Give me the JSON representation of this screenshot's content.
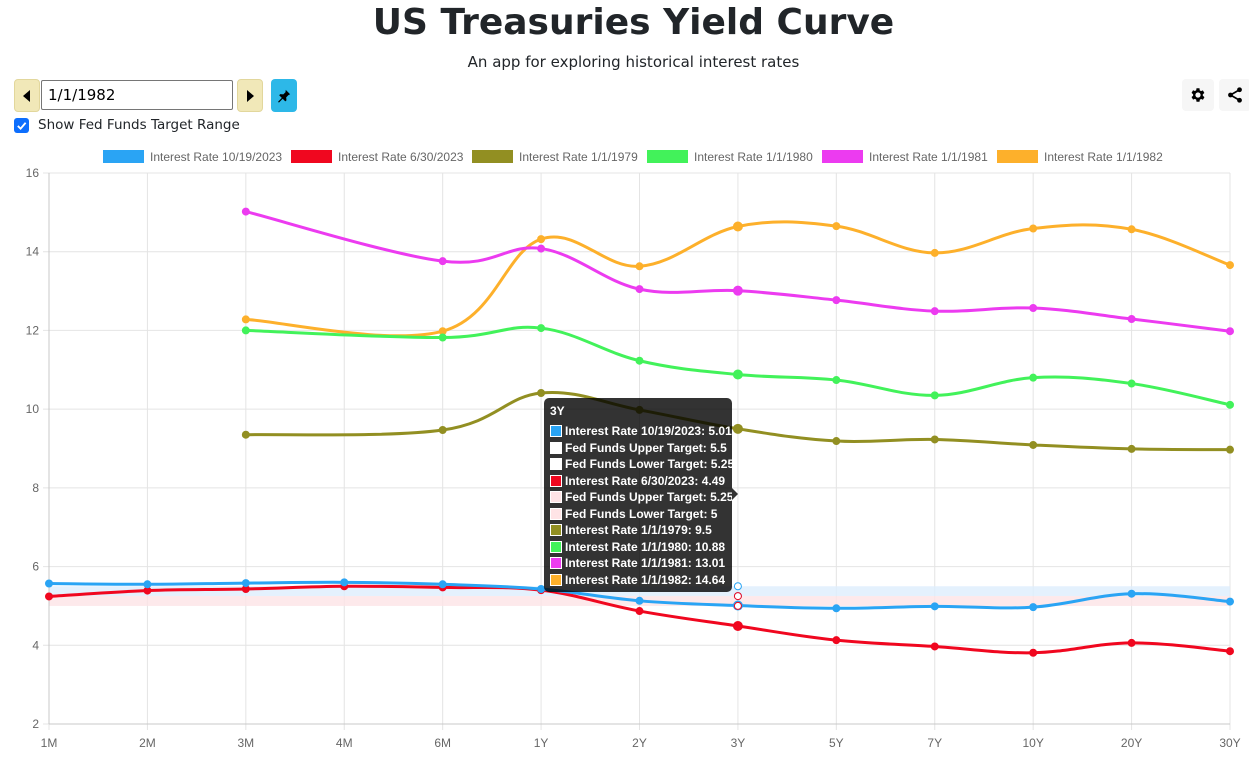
{
  "header": {
    "title": "US Treasuries Yield Curve",
    "subtitle": "An app for exploring historical interest rates"
  },
  "controls": {
    "date_value": "1/1/1982",
    "prev_icon": "triangle-left-icon",
    "next_icon": "triangle-right-icon",
    "pin_icon": "pin-icon",
    "settings_icon": "gear-icon",
    "share_icon": "share-icon",
    "fed_toggle_label": "Show Fed Funds Target Range",
    "fed_toggle_checked": true
  },
  "chart_data": {
    "type": "line",
    "categories": [
      "1M",
      "2M",
      "3M",
      "4M",
      "6M",
      "1Y",
      "2Y",
      "3Y",
      "5Y",
      "7Y",
      "10Y",
      "20Y",
      "30Y"
    ],
    "ylim": [
      2,
      16
    ],
    "yticks": [
      2,
      4,
      6,
      8,
      10,
      12,
      14,
      16
    ],
    "grid": true,
    "legend_position": "top",
    "series": [
      {
        "name": "Interest Rate 10/19/2023",
        "color": "#2aa4f4",
        "values": [
          5.57,
          5.55,
          5.58,
          5.6,
          5.55,
          5.43,
          5.13,
          5.01,
          4.94,
          4.99,
          4.97,
          5.31,
          5.11
        ]
      },
      {
        "name": "Interest Rate 6/30/2023",
        "color": "#f0071f",
        "values": [
          5.24,
          5.39,
          5.43,
          5.5,
          5.47,
          5.4,
          4.87,
          4.49,
          4.13,
          3.97,
          3.81,
          4.06,
          3.85
        ]
      },
      {
        "name": "Interest Rate 1/1/1979",
        "color": "#928f22",
        "values": [
          null,
          null,
          9.35,
          null,
          9.47,
          10.41,
          9.98,
          9.5,
          9.19,
          9.23,
          9.09,
          8.99,
          8.97
        ]
      },
      {
        "name": "Interest Rate 1/1/1980",
        "color": "#42f25a",
        "values": [
          null,
          null,
          12.0,
          null,
          11.82,
          12.06,
          11.23,
          10.88,
          10.74,
          10.35,
          10.8,
          10.65,
          10.11
        ]
      },
      {
        "name": "Interest Rate 1/1/1981",
        "color": "#ec3bf0",
        "values": [
          null,
          null,
          15.02,
          null,
          13.76,
          14.08,
          13.05,
          13.01,
          12.77,
          12.49,
          12.57,
          12.29,
          11.98
        ]
      },
      {
        "name": "Interest Rate 1/1/1982",
        "color": "#fdb02b",
        "values": [
          null,
          null,
          12.28,
          null,
          11.98,
          14.32,
          13.63,
          14.64,
          14.65,
          13.97,
          14.59,
          14.57,
          13.66
        ]
      }
    ],
    "fed_funds_bands": [
      {
        "color": "#ddeefc",
        "upper": 5.5,
        "lower": 5.25
      },
      {
        "color": "#fde4e6",
        "upper": 5.25,
        "lower": 5.0
      }
    ],
    "tooltip": {
      "title": "3Y",
      "rows": [
        {
          "text": "Interest Rate 10/19/2023: 5.01",
          "color": "#2aa4f4"
        },
        {
          "text": "Fed Funds Upper Target: 5.5",
          "color": "#ffffff"
        },
        {
          "text": "Fed Funds Lower Target: 5.25",
          "color": "#ffffff"
        },
        {
          "text": "Interest Rate 6/30/2023: 4.49",
          "color": "#f0071f"
        },
        {
          "text": "Fed Funds Upper Target: 5.25",
          "color": "#ffe4e6"
        },
        {
          "text": "Fed Funds Lower Target: 5",
          "color": "#ffe4e6"
        },
        {
          "text": "Interest Rate 1/1/1979: 9.5",
          "color": "#928f22"
        },
        {
          "text": "Interest Rate 1/1/1980: 10.88",
          "color": "#42f25a"
        },
        {
          "text": "Interest Rate 1/1/1981: 13.01",
          "color": "#ec3bf0"
        },
        {
          "text": "Interest Rate 1/1/1982: 14.64",
          "color": "#fdb02b"
        }
      ]
    }
  }
}
